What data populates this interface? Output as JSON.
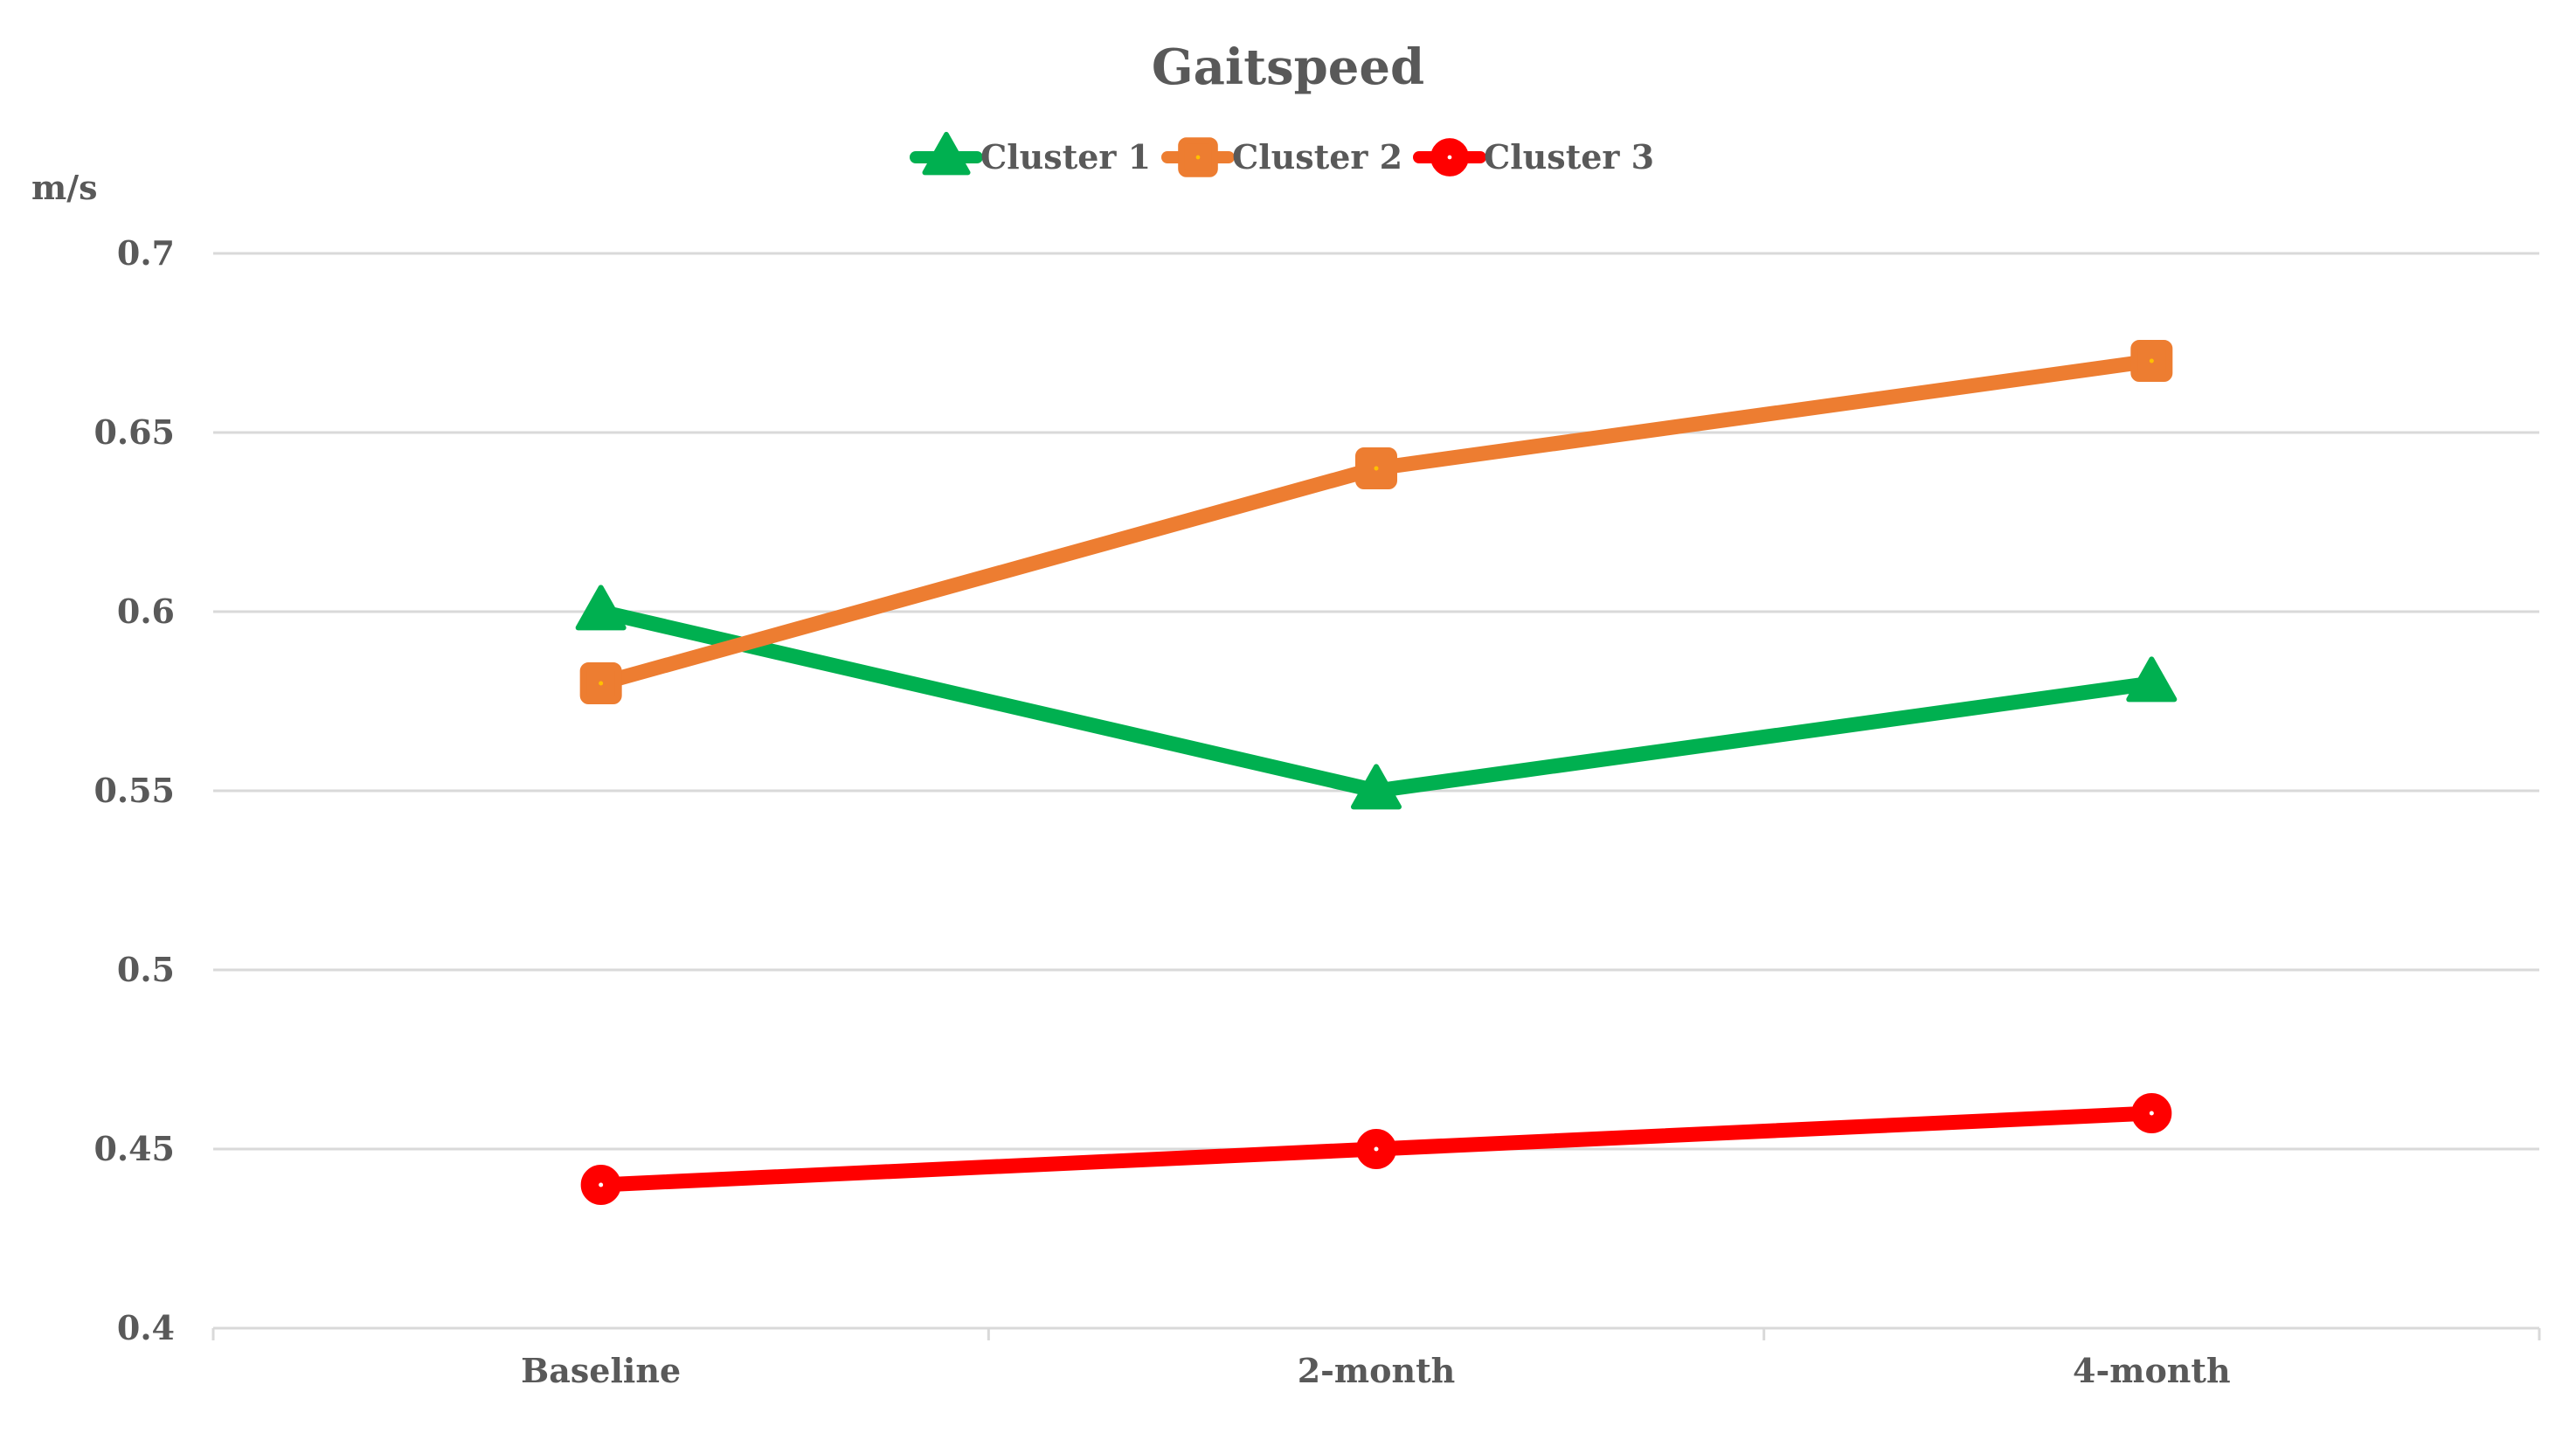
{
  "chart_data": {
    "type": "line",
    "title": "Gaitspeed",
    "ylabel": "m/s",
    "xlabel": "",
    "categories": [
      "Baseline",
      "2-month",
      "4-month"
    ],
    "ylim": [
      0.4,
      0.7
    ],
    "yticks": [
      "0.4",
      "0.45",
      "0.5",
      "0.55",
      "0.6",
      "0.65",
      "0.7"
    ],
    "ytick_values": [
      0.4,
      0.45,
      0.5,
      0.55,
      0.6,
      0.65,
      0.7
    ],
    "grid": true,
    "legend": "top-center",
    "series": [
      {
        "name": "Cluster 1",
        "values": [
          0.6,
          0.55,
          0.58
        ],
        "color": "#00B050",
        "marker": "triangle"
      },
      {
        "name": "Cluster 2",
        "values": [
          0.58,
          0.64,
          0.67
        ],
        "color": "#ED7D31",
        "marker": "square"
      },
      {
        "name": "Cluster 3",
        "values": [
          0.44,
          0.45,
          0.46
        ],
        "color": "#FF0000",
        "marker": "circle"
      }
    ]
  }
}
